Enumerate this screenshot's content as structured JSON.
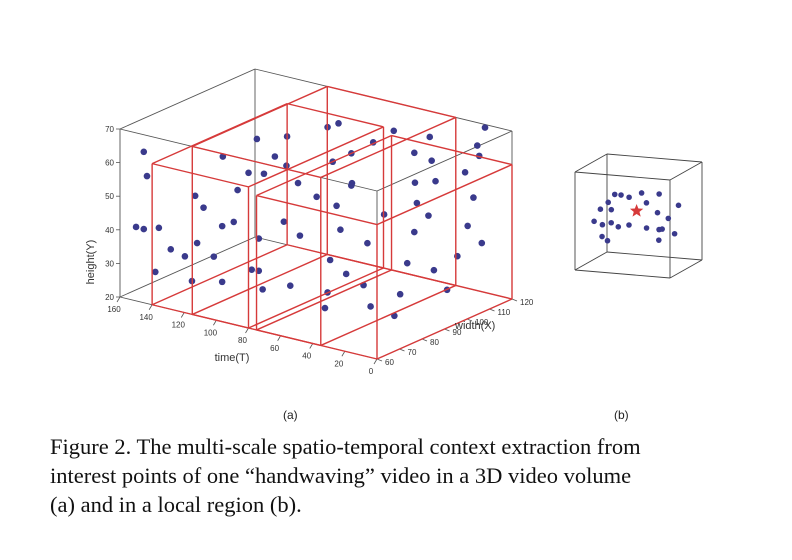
{
  "figure_a": {
    "label": "(a)",
    "chart_data": {
      "type": "scatter",
      "title": "",
      "xlabel": "time(T)",
      "ylabel": "height(Y)",
      "zlabel": "width(X)",
      "x_ticks": [
        "160",
        "140",
        "120",
        "100",
        "80",
        "60",
        "40",
        "20",
        "0"
      ],
      "y_ticks": [
        "20",
        "30",
        "40",
        "50",
        "60",
        "70"
      ],
      "z_ticks": [
        "60",
        "70",
        "80",
        "90",
        "100",
        "110",
        "120"
      ],
      "xlim": [
        0,
        160
      ],
      "ylim": [
        20,
        70
      ],
      "zlim": [
        60,
        120
      ],
      "point_color": "#3a3a8c",
      "box_color": "#d63a3a",
      "points": [
        {
          "t": 148,
          "y": 64,
          "x": 62
        },
        {
          "t": 146,
          "y": 57,
          "x": 62
        },
        {
          "t": 150,
          "y": 42,
          "x": 60
        },
        {
          "t": 148,
          "y": 41,
          "x": 62
        },
        {
          "t": 140,
          "y": 42,
          "x": 63
        },
        {
          "t": 134,
          "y": 36,
          "x": 64
        },
        {
          "t": 128,
          "y": 34,
          "x": 66
        },
        {
          "t": 126,
          "y": 37,
          "x": 70
        },
        {
          "t": 122,
          "y": 48,
          "x": 70
        },
        {
          "t": 116,
          "y": 42,
          "x": 74
        },
        {
          "t": 112,
          "y": 52,
          "x": 78
        },
        {
          "t": 108,
          "y": 57,
          "x": 80
        },
        {
          "t": 104,
          "y": 56,
          "x": 84
        },
        {
          "t": 100,
          "y": 61,
          "x": 86
        },
        {
          "t": 98,
          "y": 66,
          "x": 90
        },
        {
          "t": 94,
          "y": 52,
          "x": 92
        },
        {
          "t": 96,
          "y": 40,
          "x": 76
        },
        {
          "t": 92,
          "y": 33,
          "x": 70
        },
        {
          "t": 88,
          "y": 27,
          "x": 72
        },
        {
          "t": 86,
          "y": 45,
          "x": 80
        },
        {
          "t": 84,
          "y": 68,
          "x": 98
        },
        {
          "t": 80,
          "y": 69,
          "x": 100
        },
        {
          "t": 78,
          "y": 59,
          "x": 96
        },
        {
          "t": 72,
          "y": 61,
          "x": 100
        },
        {
          "t": 70,
          "y": 48,
          "x": 92
        },
        {
          "t": 66,
          "y": 54,
          "x": 96
        },
        {
          "t": 62,
          "y": 43,
          "x": 88
        },
        {
          "t": 60,
          "y": 36,
          "x": 82
        },
        {
          "t": 56,
          "y": 28,
          "x": 78
        },
        {
          "t": 52,
          "y": 25,
          "x": 74
        },
        {
          "t": 50,
          "y": 33,
          "x": 82
        },
        {
          "t": 46,
          "y": 47,
          "x": 96
        },
        {
          "t": 44,
          "y": 62,
          "x": 108
        },
        {
          "t": 40,
          "y": 66,
          "x": 112
        },
        {
          "t": 38,
          "y": 55,
          "x": 104
        },
        {
          "t": 34,
          "y": 50,
          "x": 102
        },
        {
          "t": 30,
          "y": 43,
          "x": 98
        },
        {
          "t": 26,
          "y": 36,
          "x": 92
        },
        {
          "t": 22,
          "y": 29,
          "x": 86
        },
        {
          "t": 20,
          "y": 24,
          "x": 82
        },
        {
          "t": 18,
          "y": 58,
          "x": 112
        },
        {
          "t": 16,
          "y": 65,
          "x": 116
        },
        {
          "t": 14,
          "y": 70,
          "x": 118
        },
        {
          "t": 12,
          "y": 63,
          "x": 114
        },
        {
          "t": 10,
          "y": 52,
          "x": 110
        },
        {
          "t": 8,
          "y": 45,
          "x": 106
        },
        {
          "t": 6,
          "y": 38,
          "x": 100
        },
        {
          "t": 4,
          "y": 30,
          "x": 94
        },
        {
          "t": 130,
          "y": 50,
          "x": 72
        },
        {
          "t": 118,
          "y": 29,
          "x": 62
        },
        {
          "t": 110,
          "y": 36,
          "x": 66
        },
        {
          "t": 102,
          "y": 30,
          "x": 64
        },
        {
          "t": 90,
          "y": 60,
          "x": 84
        },
        {
          "t": 76,
          "y": 42,
          "x": 80
        },
        {
          "t": 68,
          "y": 31,
          "x": 70
        },
        {
          "t": 58,
          "y": 56,
          "x": 90
        },
        {
          "t": 48,
          "y": 40,
          "x": 90
        },
        {
          "t": 36,
          "y": 60,
          "x": 110
        },
        {
          "t": 28,
          "y": 56,
          "x": 106
        },
        {
          "t": 24,
          "y": 48,
          "x": 100
        },
        {
          "t": 74,
          "y": 52,
          "x": 86
        },
        {
          "t": 64,
          "y": 64,
          "x": 104
        },
        {
          "t": 54,
          "y": 68,
          "x": 106
        },
        {
          "t": 42,
          "y": 30,
          "x": 84
        },
        {
          "t": 32,
          "y": 26,
          "x": 80
        },
        {
          "t": 138,
          "y": 30,
          "x": 60
        },
        {
          "t": 124,
          "y": 60,
          "x": 80
        },
        {
          "t": 114,
          "y": 64,
          "x": 88
        },
        {
          "t": 106,
          "y": 45,
          "x": 72
        },
        {
          "t": 82,
          "y": 35,
          "x": 66
        },
        {
          "t": 2,
          "y": 40,
          "x": 108
        },
        {
          "t": 15,
          "y": 34,
          "x": 96
        }
      ],
      "boxes": [
        {
          "t": [
            80,
            140
          ],
          "y": [
            20,
            62
          ],
          "x": [
            60,
            120
          ]
        },
        {
          "t": [
            35,
            115
          ],
          "y": [
            20,
            70
          ],
          "x": [
            60,
            120
          ]
        },
        {
          "t": [
            0,
            75
          ],
          "y": [
            20,
            60
          ],
          "x": [
            60,
            120
          ]
        }
      ]
    }
  },
  "figure_b": {
    "label": "(b)",
    "chart_data": {
      "type": "scatter",
      "title": "",
      "point_color": "#3a3a8c",
      "star_color": "#d63a3a",
      "points": [
        {
          "x": 0.1,
          "y": 0.45,
          "z": 0.3
        },
        {
          "x": 0.12,
          "y": 0.38,
          "z": 0.5
        },
        {
          "x": 0.15,
          "y": 0.28,
          "z": 0.4
        },
        {
          "x": 0.18,
          "y": 0.52,
          "z": 0.6
        },
        {
          "x": 0.2,
          "y": 0.6,
          "z": 0.2
        },
        {
          "x": 0.22,
          "y": 0.33,
          "z": 0.7
        },
        {
          "x": 0.25,
          "y": 0.7,
          "z": 0.5
        },
        {
          "x": 0.28,
          "y": 0.45,
          "z": 0.3
        },
        {
          "x": 0.3,
          "y": 0.62,
          "z": 0.8
        },
        {
          "x": 0.35,
          "y": 0.72,
          "z": 0.4
        },
        {
          "x": 0.4,
          "y": 0.4,
          "z": 0.5
        },
        {
          "x": 0.55,
          "y": 0.62,
          "z": 0.6
        },
        {
          "x": 0.6,
          "y": 0.78,
          "z": 0.3
        },
        {
          "x": 0.65,
          "y": 0.7,
          "z": 0.7
        },
        {
          "x": 0.7,
          "y": 0.55,
          "z": 0.5
        },
        {
          "x": 0.75,
          "y": 0.4,
          "z": 0.4
        },
        {
          "x": 0.78,
          "y": 0.48,
          "z": 0.6
        },
        {
          "x": 0.82,
          "y": 0.58,
          "z": 0.8
        },
        {
          "x": 0.85,
          "y": 0.45,
          "z": 0.2
        },
        {
          "x": 0.88,
          "y": 0.35,
          "z": 0.5
        },
        {
          "x": 0.14,
          "y": 0.2,
          "z": 0.6
        },
        {
          "x": 0.45,
          "y": 0.3,
          "z": 0.9
        },
        {
          "x": 0.68,
          "y": 0.25,
          "z": 0.6
        },
        {
          "x": 0.08,
          "y": 0.55,
          "z": 0.8
        }
      ],
      "star": {
        "x": 0.48,
        "y": 0.55,
        "z": 0.5
      }
    }
  },
  "caption": {
    "line1": "Figure 2. The multi-scale spatio-temporal context extraction from",
    "line2": "interest points of one “handwaving” video in a 3D video volume",
    "line3": "(a) and in a local region (b)."
  }
}
